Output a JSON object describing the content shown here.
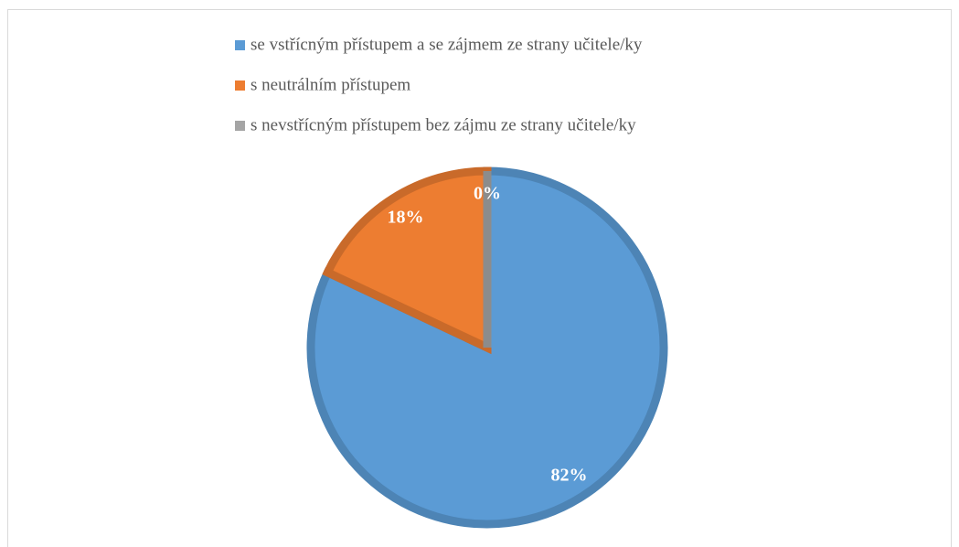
{
  "chart_data": {
    "type": "pie",
    "categories": [
      "se vstřícným přístupem a se zájmem ze strany učitele/ky",
      "s neutrálním přístupem",
      "s nevstřícným přístupem bez zájmu ze strany učitele/ky"
    ],
    "values": [
      82,
      18,
      0
    ],
    "value_labels": [
      "82%",
      "18%",
      "0%"
    ],
    "colors": [
      "#5b9bd5",
      "#ed7d31",
      "#a5a5a5"
    ],
    "legend": "top"
  }
}
